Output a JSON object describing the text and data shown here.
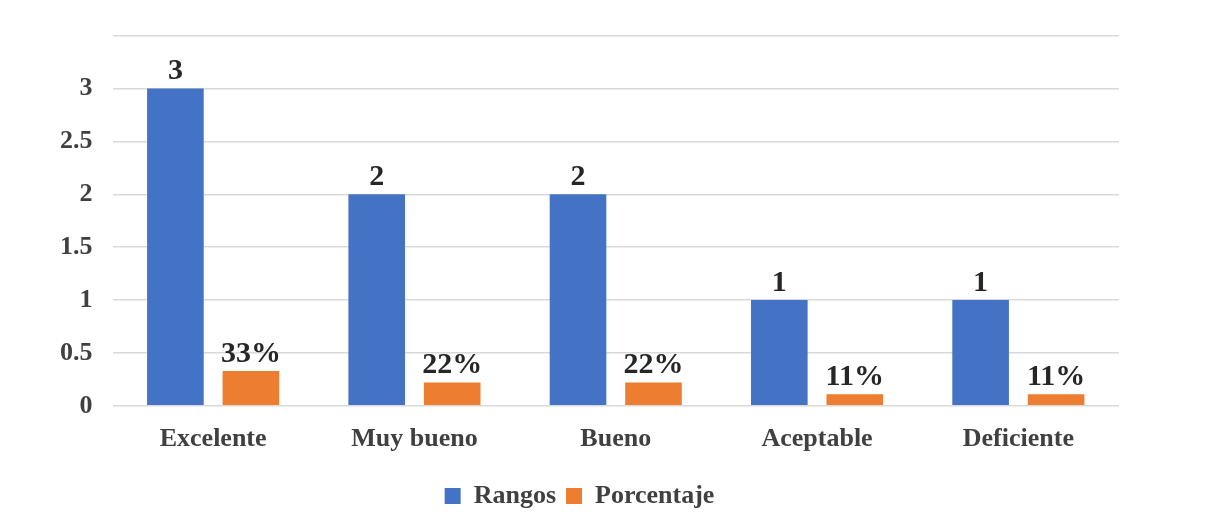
{
  "chart_data": {
    "type": "bar",
    "categories": [
      "Excelente",
      "Muy bueno",
      "Bueno",
      "Aceptable",
      "Deficiente"
    ],
    "series": [
      {
        "name": "Rangos",
        "color": "#4472c4",
        "values": [
          3,
          2,
          2,
          1,
          1
        ],
        "value_labels": [
          "3",
          "2",
          "2",
          "1",
          "1"
        ]
      },
      {
        "name": "Porcentaje",
        "color": "#ed7d31",
        "values": [
          0.33,
          0.22,
          0.22,
          0.11,
          0.11
        ],
        "value_labels": [
          "33%",
          "22%",
          "22%",
          "11%",
          "11%"
        ]
      }
    ],
    "ylim": [
      0,
      3.5
    ],
    "yticks": [
      0,
      0.5,
      1,
      1.5,
      2,
      2.5,
      3,
      {
        "value": 3.5,
        "label": null
      }
    ],
    "grid": "y",
    "legend": "bottom"
  }
}
